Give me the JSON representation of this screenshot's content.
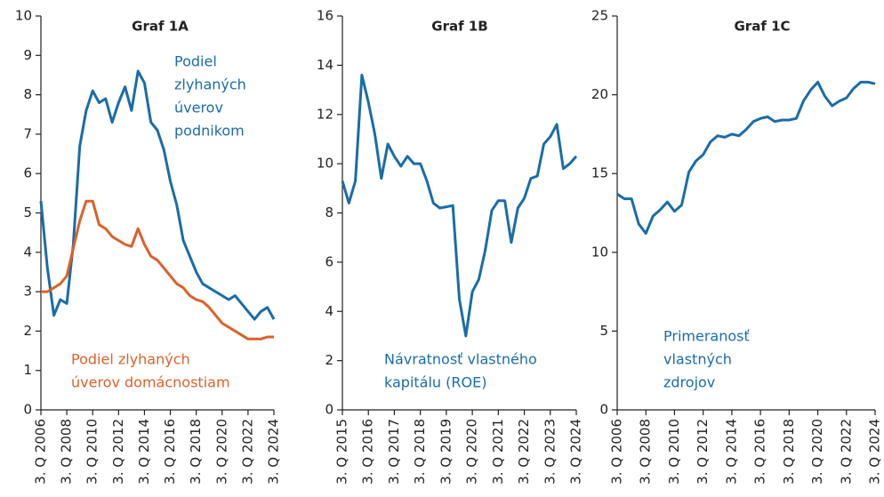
{
  "chart_data": [
    {
      "type": "line",
      "title": "Graf 1A",
      "x": [
        2006.5,
        2007,
        2007.5,
        2008,
        2008.5,
        2009,
        2009.5,
        2010,
        2010.5,
        2011,
        2011.5,
        2012,
        2012.5,
        2013,
        2013.5,
        2014,
        2014.5,
        2015,
        2015.5,
        2016,
        2016.5,
        2017,
        2017.5,
        2018,
        2018.5,
        2019,
        2019.5,
        2020,
        2020.5,
        2021,
        2021.5,
        2022,
        2022.5,
        2023,
        2023.5,
        2024,
        2024.5
      ],
      "series": [
        {
          "label": [
            "Podiel",
            "zlyhaných",
            "úverov",
            "podnikom"
          ],
          "color": "#1a6ca8",
          "values": [
            5.3,
            3.6,
            2.4,
            2.8,
            2.7,
            4.2,
            6.7,
            7.6,
            8.1,
            7.8,
            7.9,
            7.3,
            7.8,
            8.2,
            7.6,
            8.6,
            8.3,
            7.3,
            7.1,
            6.6,
            5.8,
            5.2,
            4.3,
            3.9,
            3.5,
            3.2,
            3.1,
            3.0,
            2.9,
            2.8,
            2.9,
            2.7,
            2.5,
            2.3,
            2.5,
            2.6,
            2.3
          ]
        },
        {
          "label": [
            "Podiel zlyhaných",
            "úverov domácnostiam"
          ],
          "color": "#d9622b",
          "values": [
            3.0,
            3.0,
            3.1,
            3.2,
            3.4,
            4.1,
            4.8,
            5.3,
            5.3,
            4.7,
            4.6,
            4.4,
            4.3,
            4.2,
            4.15,
            4.6,
            4.2,
            3.9,
            3.8,
            3.6,
            3.4,
            3.2,
            3.1,
            2.9,
            2.8,
            2.75,
            2.6,
            2.4,
            2.2,
            2.1,
            2.0,
            1.9,
            1.8,
            1.8,
            1.8,
            1.85,
            1.85
          ]
        }
      ],
      "xlim": [
        2006.5,
        2024.5
      ],
      "ylim": [
        0,
        10
      ],
      "yticks": [
        0,
        1,
        2,
        3,
        4,
        5,
        6,
        7,
        8,
        9,
        10
      ],
      "xticks": [
        {
          "value": 2006.5,
          "label": "3. Q 2006"
        },
        {
          "value": 2008.5,
          "label": "3. Q 2008"
        },
        {
          "value": 2010.5,
          "label": "3. Q 2010"
        },
        {
          "value": 2012.5,
          "label": "3. Q 2012"
        },
        {
          "value": 2014.5,
          "label": "3. Q 2014"
        },
        {
          "value": 2016.5,
          "label": "3. Q 2016"
        },
        {
          "value": 2018.5,
          "label": "3. Q 2018"
        },
        {
          "value": 2020.5,
          "label": "3. Q 2020"
        },
        {
          "value": 2022.5,
          "label": "3. Q 2022"
        },
        {
          "value": 2024.5,
          "label": "3. Q 2024"
        }
      ]
    },
    {
      "type": "line",
      "title": "Graf 1B",
      "x": [
        2015.5,
        2015.75,
        2016,
        2016.25,
        2016.5,
        2016.75,
        2017,
        2017.25,
        2017.5,
        2017.75,
        2018,
        2018.25,
        2018.5,
        2018.75,
        2019,
        2019.25,
        2019.5,
        2019.75,
        2020,
        2020.25,
        2020.5,
        2020.75,
        2021,
        2021.25,
        2021.5,
        2021.75,
        2022,
        2022.25,
        2022.5,
        2022.75,
        2023,
        2023.25,
        2023.5,
        2023.75,
        2024,
        2024.25,
        2024.5
      ],
      "series": [
        {
          "label": [
            "Návratnosť vlastného",
            "kapitálu (ROE)"
          ],
          "color": "#1a6ca8",
          "values": [
            9.3,
            8.4,
            9.3,
            13.6,
            12.5,
            11.2,
            9.4,
            10.8,
            10.3,
            9.9,
            10.3,
            10.0,
            10.0,
            9.3,
            8.4,
            8.2,
            8.25,
            8.3,
            4.5,
            3.0,
            4.8,
            5.3,
            6.5,
            8.1,
            8.5,
            8.5,
            6.8,
            8.2,
            8.6,
            9.4,
            9.5,
            10.8,
            11.1,
            11.6,
            9.8,
            10.0,
            10.3
          ]
        }
      ],
      "xlim": [
        2015.5,
        2024.5
      ],
      "ylim": [
        0,
        16
      ],
      "yticks": [
        0,
        2,
        4,
        6,
        8,
        10,
        12,
        14,
        16
      ],
      "xticks": [
        {
          "value": 2015.5,
          "label": "3. Q 2015"
        },
        {
          "value": 2016.5,
          "label": "3. Q 2016"
        },
        {
          "value": 2017.5,
          "label": "3. Q 2017"
        },
        {
          "value": 2018.5,
          "label": "3. Q 2018"
        },
        {
          "value": 2019.5,
          "label": "3. Q 2019"
        },
        {
          "value": 2020.5,
          "label": "3. Q 2020"
        },
        {
          "value": 2021.5,
          "label": "3. Q 2021"
        },
        {
          "value": 2022.5,
          "label": "3. Q 2022"
        },
        {
          "value": 2023.5,
          "label": "3. Q 2023"
        },
        {
          "value": 2024.5,
          "label": "3. Q 2024"
        }
      ]
    },
    {
      "type": "line",
      "title": "Graf 1C",
      "x": [
        2006.5,
        2007,
        2007.5,
        2008,
        2008.5,
        2009,
        2009.5,
        2010,
        2010.5,
        2011,
        2011.5,
        2012,
        2012.5,
        2013,
        2013.5,
        2014,
        2014.5,
        2015,
        2015.5,
        2016,
        2016.5,
        2017,
        2017.5,
        2018,
        2018.5,
        2019,
        2019.5,
        2020,
        2020.5,
        2021,
        2021.5,
        2022,
        2022.5,
        2023,
        2023.5,
        2024,
        2024.5
      ],
      "series": [
        {
          "label": [
            "Primeranosť",
            "vlastných",
            "zdrojov"
          ],
          "color": "#1a6ca8",
          "values": [
            13.7,
            13.4,
            13.4,
            11.8,
            11.2,
            12.3,
            12.7,
            13.2,
            12.6,
            13.0,
            15.1,
            15.8,
            16.2,
            17.0,
            17.4,
            17.3,
            17.5,
            17.4,
            17.8,
            18.3,
            18.5,
            18.6,
            18.3,
            18.4,
            18.4,
            18.5,
            19.6,
            20.3,
            20.8,
            19.9,
            19.3,
            19.6,
            19.8,
            20.4,
            20.8,
            20.8,
            20.7
          ]
        }
      ],
      "xlim": [
        2006.5,
        2024.5
      ],
      "ylim": [
        0,
        25
      ],
      "yticks": [
        0,
        5,
        10,
        15,
        20,
        25
      ],
      "xticks": [
        {
          "value": 2006.5,
          "label": "3. Q 2006"
        },
        {
          "value": 2008.5,
          "label": "3. Q 2008"
        },
        {
          "value": 2010.5,
          "label": "3. Q 2010"
        },
        {
          "value": 2012.5,
          "label": "3. Q 2012"
        },
        {
          "value": 2014.5,
          "label": "3. Q 2014"
        },
        {
          "value": 2016.5,
          "label": "3. Q 2016"
        },
        {
          "value": 2018.5,
          "label": "3. Q 2018"
        },
        {
          "value": 2020.5,
          "label": "3. Q 2020"
        },
        {
          "value": 2022.5,
          "label": "3. Q 2022"
        },
        {
          "value": 2024.5,
          "label": "3. Q 2024"
        }
      ]
    }
  ]
}
